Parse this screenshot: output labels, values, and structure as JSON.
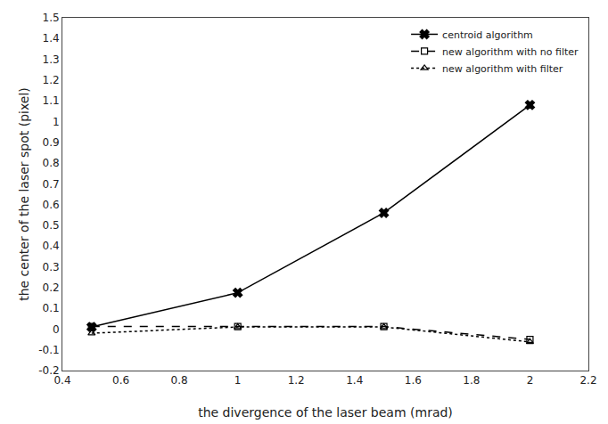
{
  "chart_data": {
    "type": "line",
    "x_label": "the divergence of the laser beam (mrad)",
    "y_label": "the center of the laser spot (pixel)",
    "x": [
      0.5,
      1.0,
      1.5,
      2.0
    ],
    "series": [
      {
        "name": "centroid algorithm",
        "color": "#000000",
        "marker": "x",
        "line_style": "solid",
        "values": [
          0.01,
          0.175,
          0.56,
          1.08
        ]
      },
      {
        "name": "new algorithm with no filter",
        "color": "#000000",
        "marker": "square",
        "line_style": "dash",
        "values": [
          0.012,
          0.012,
          0.012,
          -0.05
        ]
      },
      {
        "name": "new algorithm with filter",
        "color": "#000000",
        "marker": "triangle",
        "line_style": "dot",
        "values": [
          -0.02,
          0.01,
          0.01,
          -0.062
        ]
      }
    ],
    "xlim": [
      0.4,
      2.2
    ],
    "xticks": [
      0.4,
      0.6,
      0.8,
      1,
      1.2,
      1.4,
      1.6,
      1.8,
      2,
      2.2
    ],
    "ylim": [
      -0.2,
      1.5
    ],
    "yticks": [
      -0.2,
      -0.1,
      0,
      0.1,
      0.2,
      0.3,
      0.4,
      0.5,
      0.6,
      0.7,
      0.8,
      0.9,
      1,
      1.1,
      1.2,
      1.3,
      1.4,
      1.5
    ],
    "grid": false,
    "legend": "upper right"
  }
}
